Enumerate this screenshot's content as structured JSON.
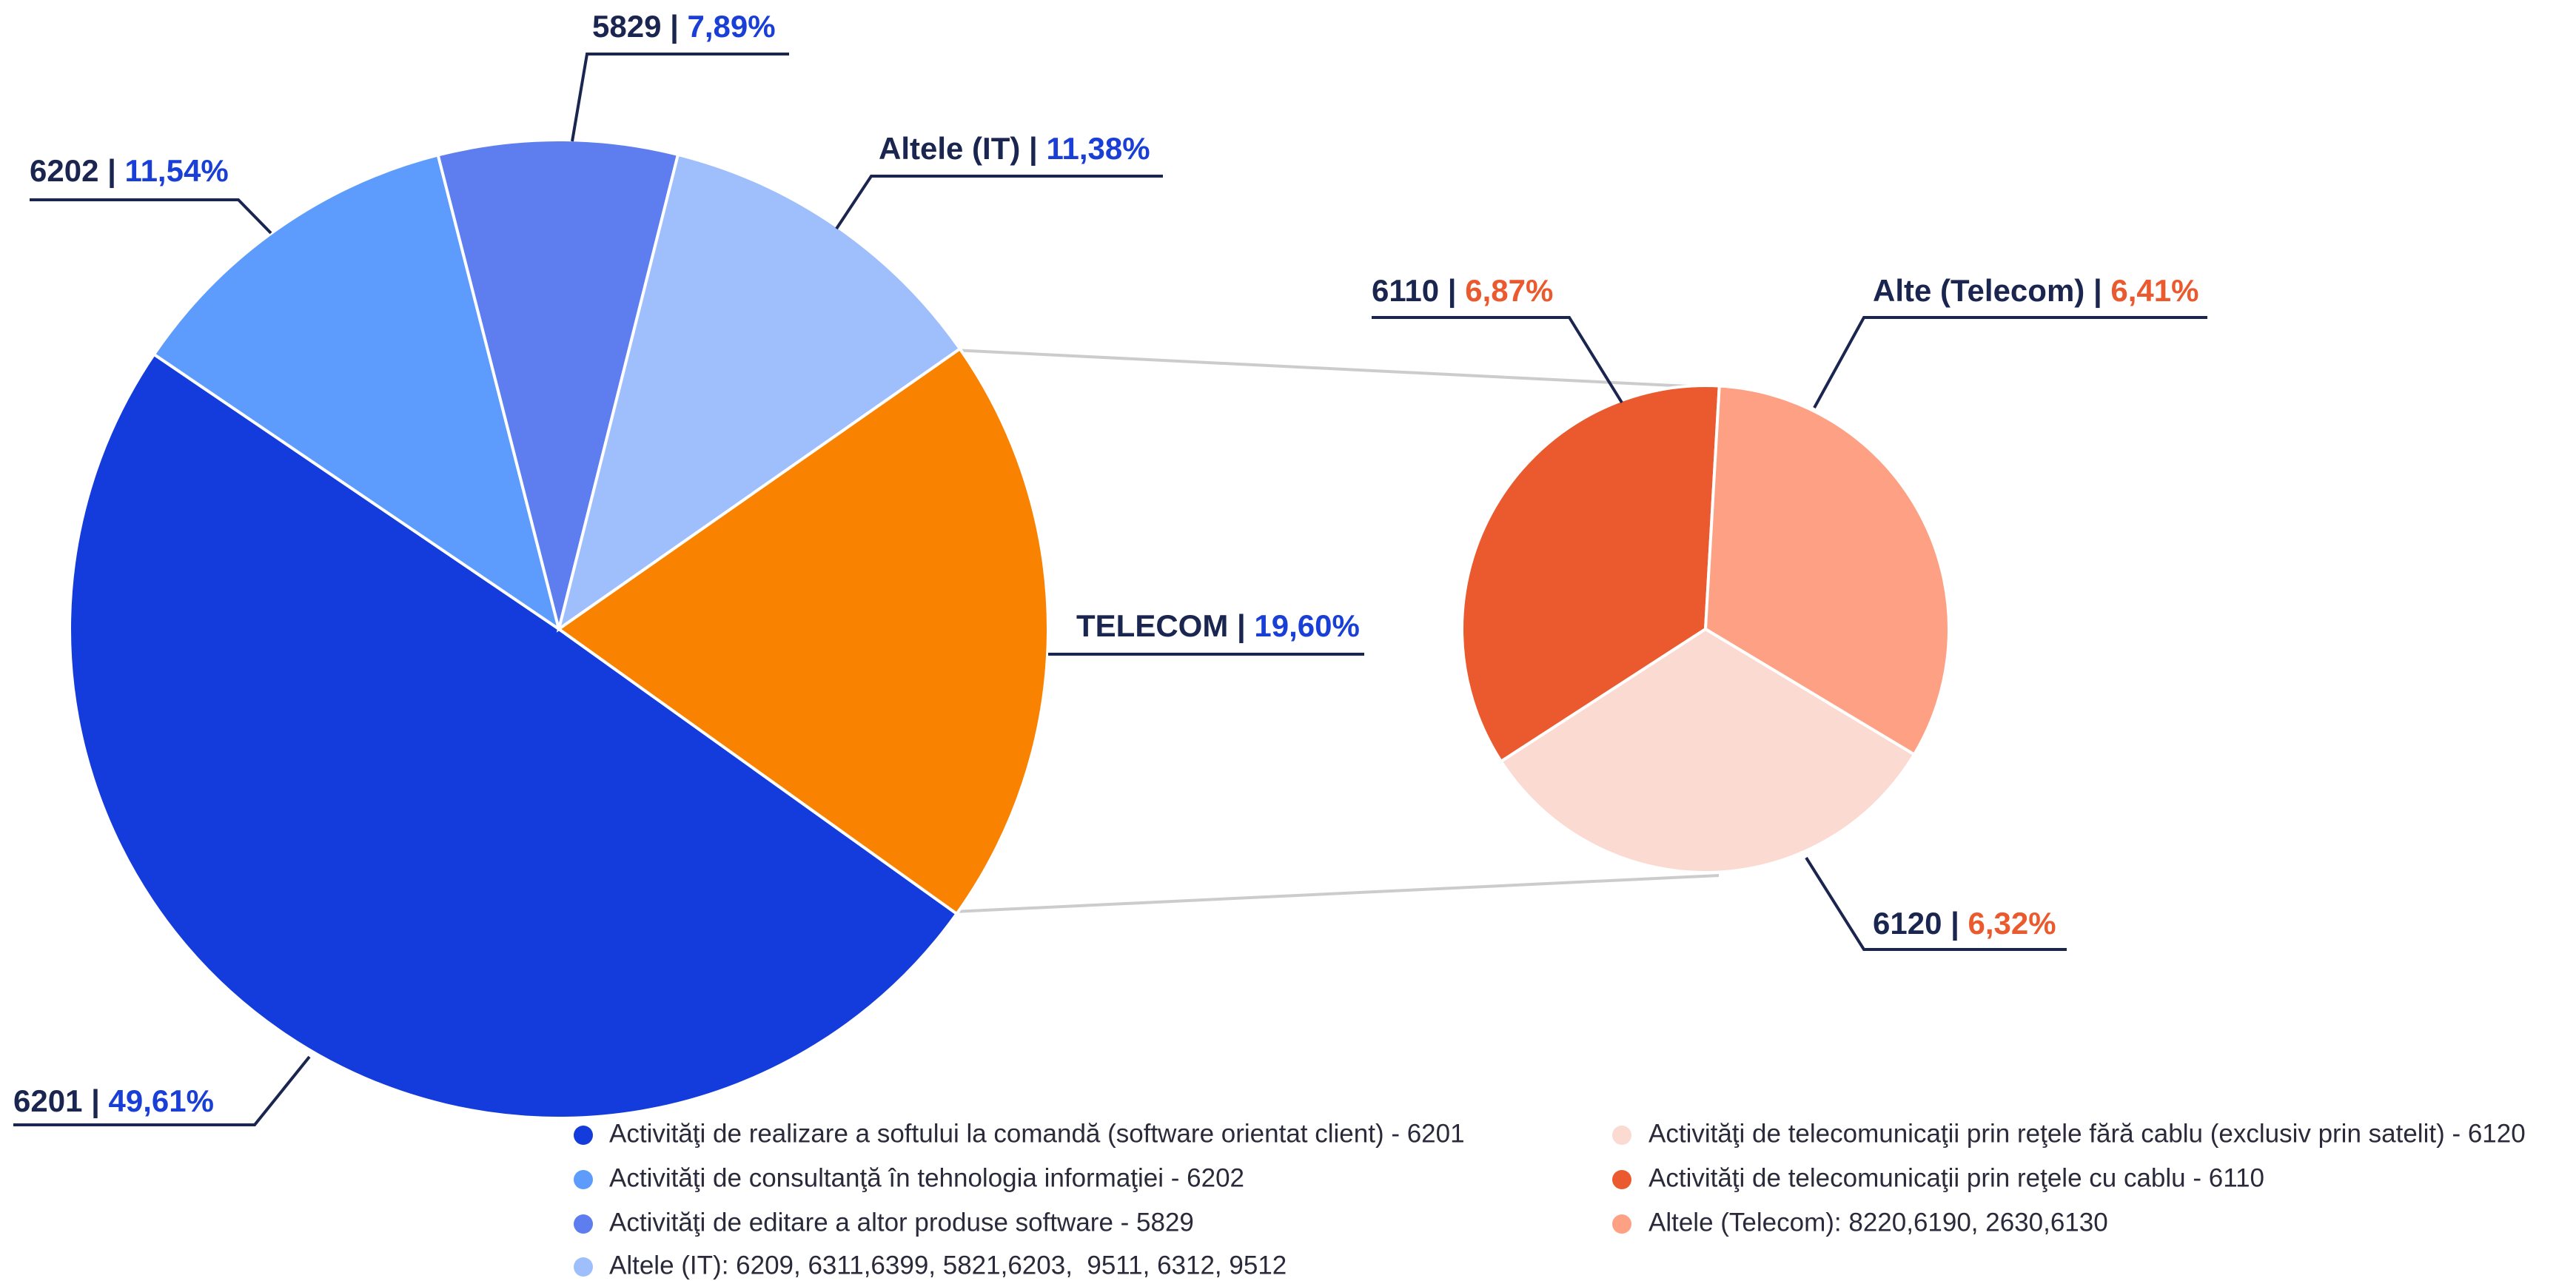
{
  "chart_data": [
    {
      "type": "pie",
      "categories": [
        "6201",
        "6202",
        "5829",
        "Altele (IT)",
        "TELECOM"
      ],
      "values": [
        49.61,
        11.54,
        7.89,
        11.38,
        19.6
      ],
      "value_labels": [
        "49,61%",
        "11,54%",
        "7,89%",
        "11,38%",
        "19,60%"
      ],
      "colors": [
        "#143cdc",
        "#5d9cfd",
        "#5e7ef0",
        "#9fbefc",
        "#f98200"
      ],
      "label_color": "#1a3fd6",
      "label_separator": " | ",
      "legend_labels": [
        "Activităţi de realizare a softului la comandă (software orientat client) - 6201",
        "Activităţi de consultanţă în tehnologia informaţiei - 6202",
        "Activităţi de editare a altor produse software - 5829",
        "Altele (IT): 6209, 6311,6399, 5821,6203,  9511, 6312, 9512",
        null
      ]
    },
    {
      "type": "pie",
      "categories": [
        "6120",
        "6110",
        "Alte (Telecom)"
      ],
      "values": [
        6.32,
        6.87,
        6.41
      ],
      "value_labels": [
        "6,32%",
        "6,87%",
        "6,41%"
      ],
      "colors": [
        "#fbdad1",
        "#eb5a2e",
        "#fea083"
      ],
      "label_color": "#eb5a2e",
      "label_separator": " | ",
      "legend_labels": [
        "Activităţi de telecomunicaţii prin reţele fără cablu (exclusiv prin satelit) - 6120",
        "Activităţi de telecomunicaţii prin reţele cu cablu - 6110",
        "Altele (Telecom): 8220,6190, 2630,6130"
      ]
    }
  ]
}
